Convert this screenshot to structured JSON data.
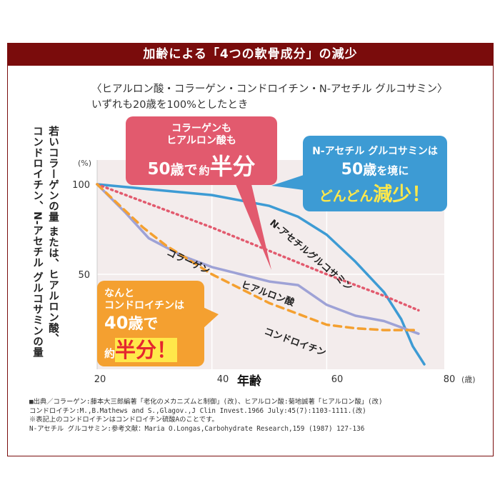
{
  "title": "加齢による「4つの軟骨成分」の減少",
  "subtitle_lines": [
    "〈ヒアルロン酸・コラーゲン・コンドロイチン・N-アセチル グルコサミン〉",
    "いずれも20歳を100%としたとき"
  ],
  "ylabel_lines": [
    "若いコラーゲンの量 または、ヒアルロン酸、",
    "コンドロイチン、N-アセチル グルコサミンの量"
  ],
  "callouts": {
    "pink": {
      "line1": "コラーゲンも",
      "line2": "ヒアルロン酸も",
      "age": "50",
      "sai": "歳で",
      "yaku": "約",
      "han": "半分",
      "color": "#e25a6e"
    },
    "blue": {
      "line1": "N-アセチル グルコサミンは",
      "age": "50",
      "sai": "歳",
      "wo": "を境に",
      "dondon": "どんどん",
      "gen": "減少！",
      "color": "#3d9bd4"
    },
    "orange": {
      "line1": "なんと",
      "line2": "コンドロイチンは",
      "age": "40",
      "sai": "歳で",
      "yaku": "約",
      "han": "半分！",
      "color": "#f4a030",
      "accent": "#e5262f",
      "yellow": "#ffe84a"
    }
  },
  "footnotes": [
    "■出典／コラーゲン:藤本大三郎編著「老化のメカニズムと制御」(改)、ヒアルロン酸:菊地誠著「ヒアルロン酸」(改)",
    "コンドロイチン:M.,B.Mathews and S.,Glagov.,J Clin Invest.1966 July:45(7):1103-1111.(改)",
    "※表記上のコンドロイチンはコンドロイチン硫酸Aのことです。",
    " N-アセチル グルコサミン:参考文献：Maria O.Longas,Carbohydrate Research,159 (1987) 127-136"
  ],
  "chart_data": {
    "type": "line",
    "xlabel": "年齢",
    "x_unit": "(歳)",
    "y_unit": "(%)",
    "xlim": [
      20,
      80
    ],
    "ylim": [
      0,
      100
    ],
    "x_ticks": [
      20,
      40,
      60,
      80
    ],
    "y_ticks": [
      50,
      100
    ],
    "series": [
      {
        "name": "N-アセチルグルコサミン",
        "color": "#3d9bd4",
        "style": "solid",
        "x": [
          20,
          30,
          40,
          50,
          55,
          60,
          65,
          70,
          73,
          75,
          77
        ],
        "y": [
          100,
          97,
          94,
          88,
          82,
          72,
          57,
          40,
          25,
          10,
          0
        ]
      },
      {
        "name": "",
        "color": "#e25a6e",
        "style": "dotted",
        "x": [
          20,
          30,
          40,
          50,
          60,
          70,
          76
        ],
        "y": [
          100,
          88,
          76,
          63,
          50,
          38,
          30
        ]
      },
      {
        "name": "コラーゲン",
        "color": "#9ea2d6",
        "style": "solid",
        "x": [
          20,
          25,
          29,
          35,
          40,
          45,
          50,
          55,
          60,
          65,
          70,
          76
        ],
        "y": [
          100,
          84,
          70,
          60,
          54,
          50,
          46,
          44,
          33,
          27,
          24,
          17
        ]
      },
      {
        "name": "",
        "color": "#f4a030",
        "style": "dashed",
        "x": [
          20,
          24,
          28,
          32,
          36,
          40,
          45,
          50,
          55,
          60,
          65,
          70,
          76
        ],
        "y": [
          100,
          88,
          76,
          66,
          58,
          50,
          42,
          34,
          28,
          22,
          20,
          19,
          19
        ]
      }
    ],
    "curve_labels": [
      {
        "text": "N-アセチルグルコサミン",
        "x": 50,
        "y": 78,
        "rot": 40,
        "color": "#222"
      },
      {
        "text": "コラーゲン",
        "x": 32,
        "y": 61,
        "rot": 25,
        "color": "#222"
      },
      {
        "text": "ヒアルロン酸",
        "x": 45,
        "y": 43,
        "rot": 20,
        "color": "#222"
      },
      {
        "text": "コンドロイチン",
        "x": 49,
        "y": 17,
        "rot": 20,
        "color": "#222"
      }
    ],
    "plot_bg": "#f3ecec",
    "grid": true
  }
}
